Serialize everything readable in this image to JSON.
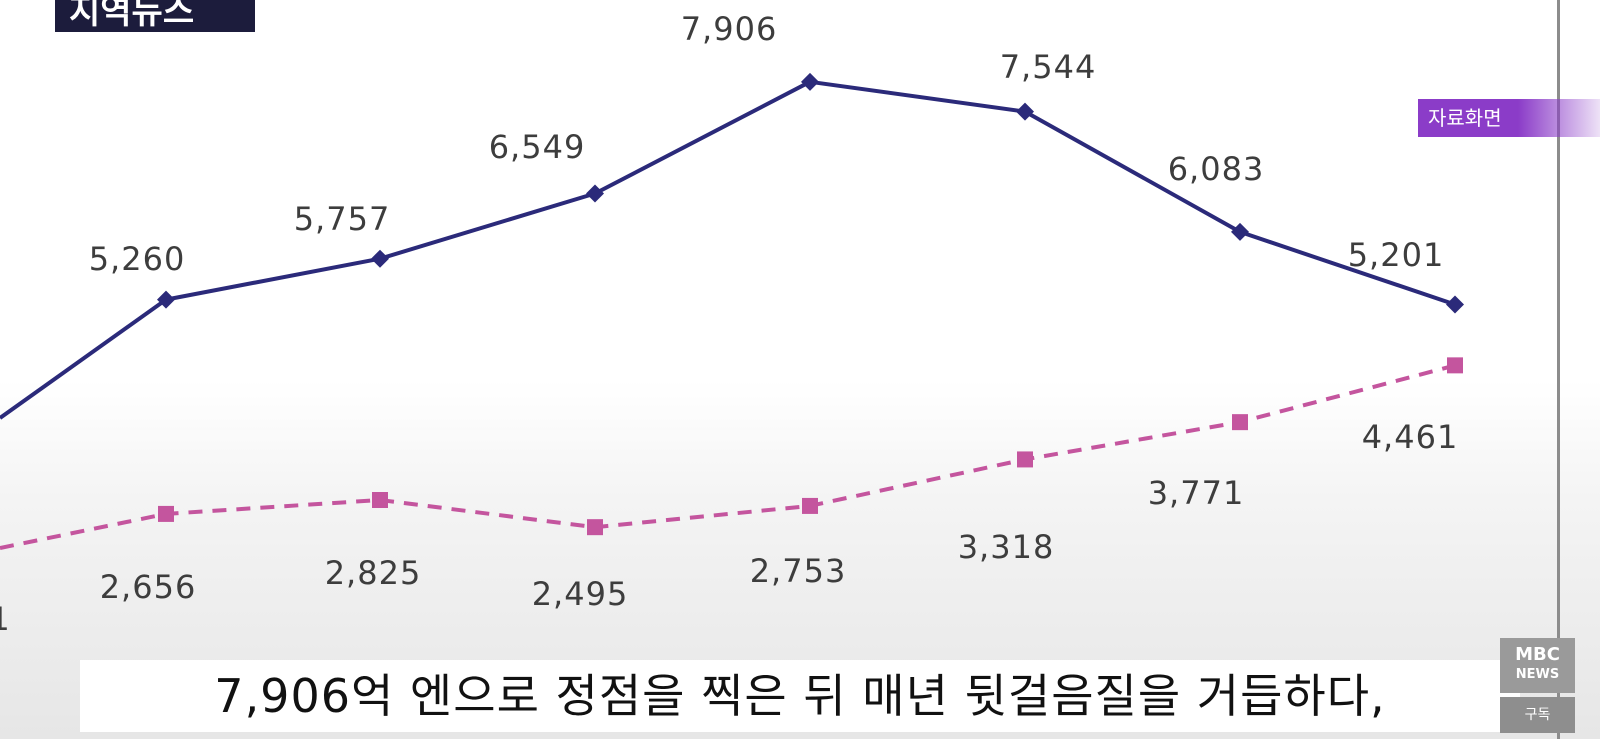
{
  "logo": {
    "text": "지역뉴스"
  },
  "badge": {
    "text": "자료화면"
  },
  "subtitle": {
    "text": "7,906억 엔으로 정점을 찍은 뒤 매년 뒷걸음질을 거듭하다,"
  },
  "channel_logo": {
    "line1": "MBC",
    "line2": "NEWS",
    "subscribe": "구독"
  },
  "colors": {
    "series1": "#2b2a7a",
    "series2": "#c4559e",
    "label": "#3d3d3d"
  },
  "chart_data": {
    "type": "line",
    "series": [
      {
        "values": [
          5260,
          5757,
          6549,
          7906,
          7544,
          6083,
          5201
        ],
        "labels": [
          "5,260",
          "5,757",
          "6,549",
          "7,906",
          "7,544",
          "6,083",
          "5,201"
        ],
        "marker": "diamond",
        "line": "solid",
        "partial_edge_label": ""
      },
      {
        "values": [
          2656,
          2825,
          2495,
          2753,
          3318,
          3771,
          4461
        ],
        "labels": [
          "2,656",
          "2,825",
          "2,495",
          "2,753",
          "3,318",
          "3,771",
          "4,461"
        ],
        "marker": "square",
        "line": "dashed",
        "partial_edge_label": "1"
      }
    ],
    "grid": false
  }
}
